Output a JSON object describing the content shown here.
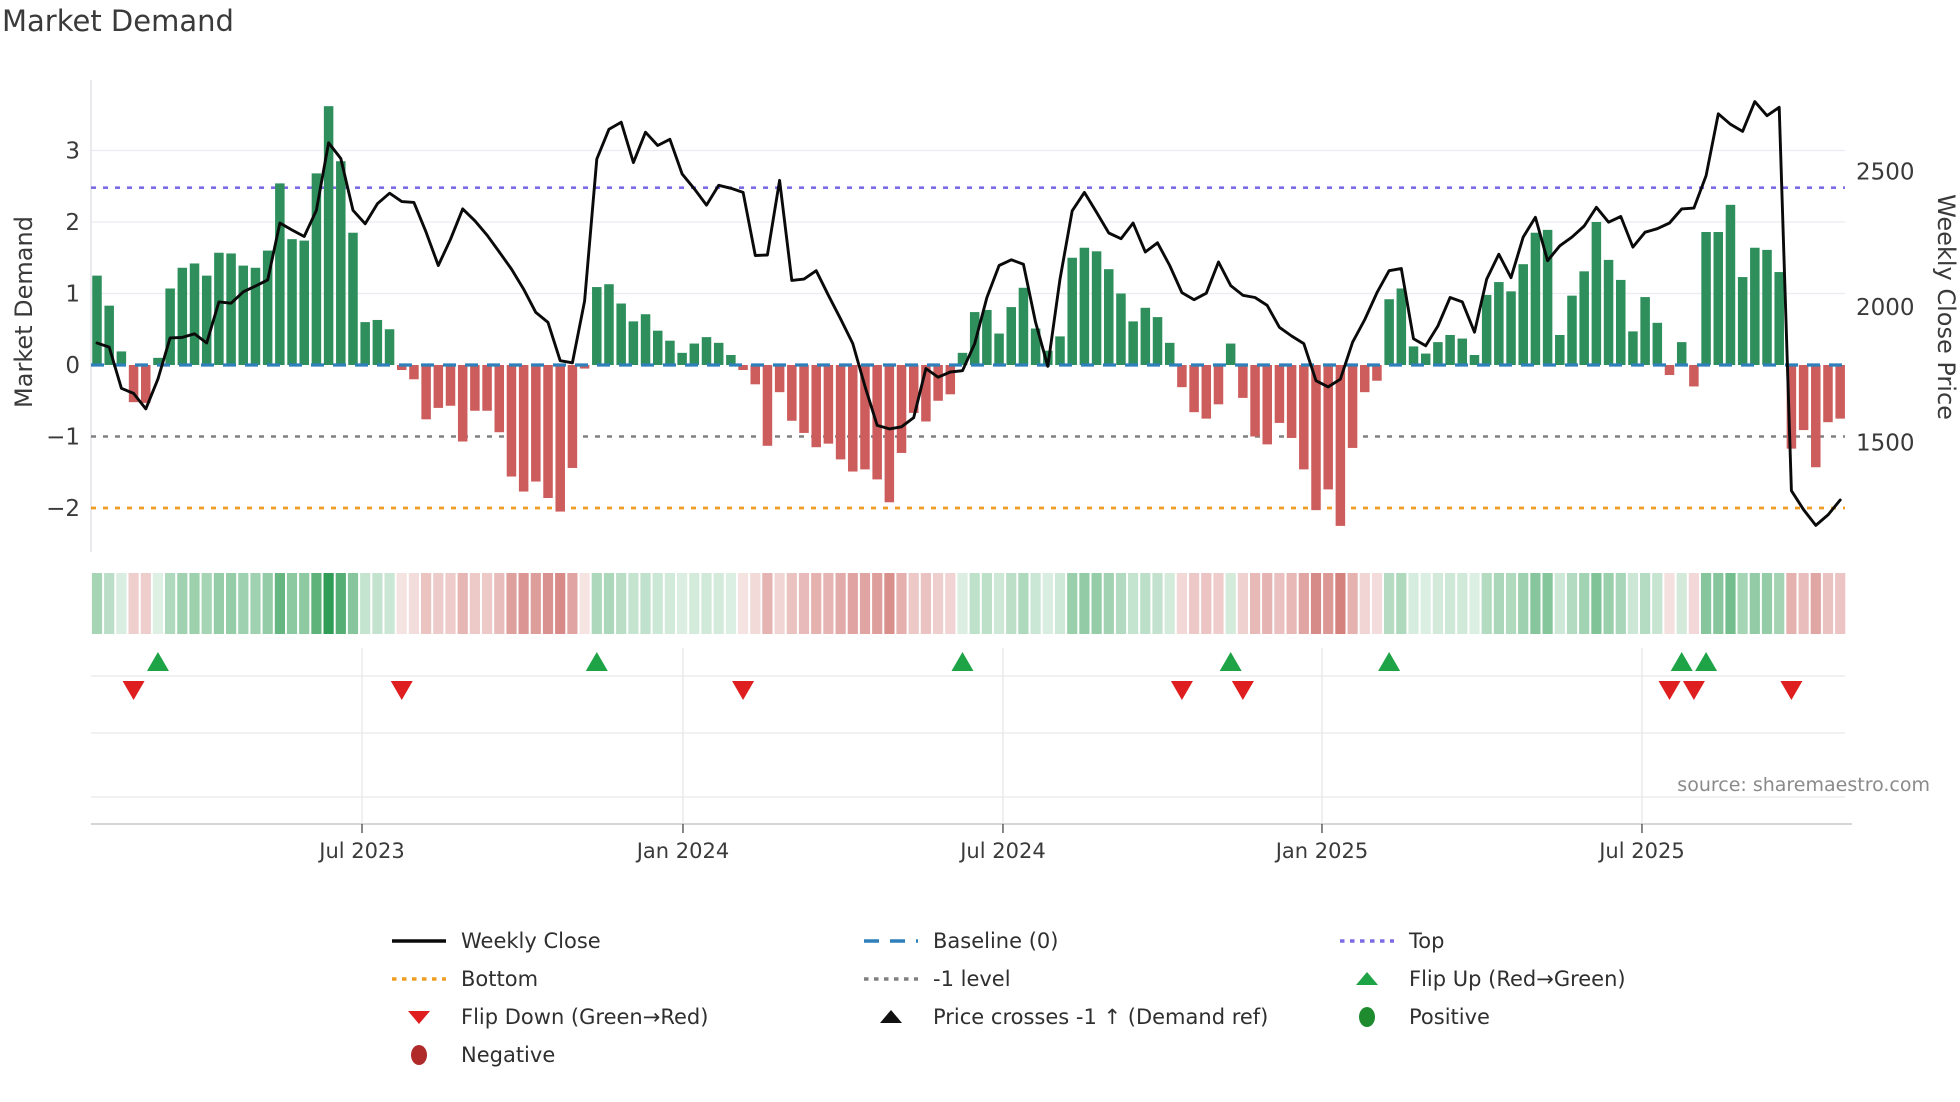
{
  "title": "Market Demand",
  "source": "source: sharemaestro.com",
  "left_axis": {
    "label": "Market Demand",
    "ticks": [
      "3",
      "2",
      "1",
      "0",
      "−1",
      "−2"
    ],
    "tick_values": [
      3,
      2,
      1,
      0,
      -1,
      -2
    ]
  },
  "right_axis": {
    "label": "Weekly Close Price",
    "ticks": [
      "2500",
      "2000",
      "1500"
    ],
    "tick_values": [
      2500,
      2000,
      1500
    ]
  },
  "colors": {
    "bar_positive": "#2e8f5c",
    "bar_negative": "#cd5c5c",
    "line": "#0a0a0a",
    "baseline": "#2f7fba",
    "top_line": "#7b6ce6",
    "bottom_line": "#ef9d22",
    "minus_one_line": "#808080",
    "flip_up": "#1fa347",
    "flip_down": "#df1f1f",
    "positive_dot": "#1e8b2e",
    "negative_dot": "#b02a2a",
    "grid": "#ececf2",
    "panel_grid": "#e3e3e3",
    "axis_line": "#c9c9c9",
    "text": "#3a3a3a"
  },
  "chart_data": {
    "type": "bar+line",
    "title": "Market Demand",
    "ylabel_left": "Market Demand",
    "ylabel_right": "Weekly Close Price",
    "left_ylim": [
      -2.7,
      3.95
    ],
    "right_ylim": [
      1090,
      2890
    ],
    "grid": "horizontal-main, date-vertical-lower-panels",
    "legend_position": "bottom, 3 columns",
    "x_ticks": [
      {
        "label": "Jul 2023",
        "index": 21.74
      },
      {
        "label": "Jan 2024",
        "index": 48.07
      },
      {
        "label": "Jul 2024",
        "index": 74.32
      },
      {
        "label": "Jan 2025",
        "index": 100.49
      },
      {
        "label": "Jul 2025",
        "index": 126.74
      }
    ],
    "reference_lines": {
      "baseline": 0,
      "top": 2.48,
      "minus_one": -1,
      "bottom": -2
    },
    "series": [
      {
        "name": "Market Demand",
        "type": "bar",
        "axis": "left",
        "values": [
          1.25,
          0.83,
          0.19,
          -0.52,
          -0.53,
          0.1,
          1.07,
          1.36,
          1.42,
          1.25,
          1.57,
          1.56,
          1.39,
          1.36,
          1.6,
          2.54,
          1.76,
          1.74,
          2.68,
          3.62,
          2.85,
          1.85,
          0.6,
          0.63,
          0.5,
          -0.07,
          -0.2,
          -0.76,
          -0.6,
          -0.57,
          -1.07,
          -0.64,
          -0.64,
          -0.94,
          -1.56,
          -1.77,
          -1.63,
          -1.86,
          -2.05,
          -1.44,
          -0.05,
          1.09,
          1.13,
          0.86,
          0.61,
          0.71,
          0.48,
          0.34,
          0.17,
          0.3,
          0.39,
          0.31,
          0.14,
          -0.07,
          -0.27,
          -1.13,
          -0.38,
          -0.78,
          -0.95,
          -1.15,
          -1.1,
          -1.32,
          -1.49,
          -1.46,
          -1.6,
          -1.92,
          -1.23,
          -0.67,
          -0.79,
          -0.5,
          -0.41,
          0.17,
          0.74,
          0.77,
          0.44,
          0.81,
          1.08,
          0.51,
          0.2,
          0.4,
          1.5,
          1.64,
          1.59,
          1.34,
          1.0,
          0.61,
          0.8,
          0.67,
          0.31,
          -0.31,
          -0.66,
          -0.75,
          -0.55,
          0.3,
          -0.46,
          -1.0,
          -1.11,
          -0.81,
          -1.02,
          -1.46,
          -2.03,
          -1.74,
          -2.25,
          -1.16,
          -0.38,
          -0.22,
          0.92,
          1.07,
          0.26,
          0.16,
          0.32,
          0.42,
          0.37,
          0.14,
          0.98,
          1.16,
          1.03,
          1.41,
          1.85,
          1.89,
          0.42,
          0.97,
          1.31,
          2.0,
          1.47,
          1.19,
          0.47,
          0.95,
          0.59,
          -0.14,
          0.32,
          -0.3,
          1.86,
          1.86,
          2.24,
          1.23,
          1.64,
          1.61,
          1.3,
          -1.17,
          -0.91,
          -1.43,
          -0.8,
          -0.75
        ]
      },
      {
        "name": "Weekly Close",
        "type": "line",
        "axis": "right",
        "values": [
          1867,
          1852,
          1700,
          1681,
          1624,
          1734,
          1886,
          1888,
          1901,
          1867,
          2019,
          2014,
          2056,
          2077,
          2100,
          2310,
          2284,
          2260,
          2357,
          2606,
          2548,
          2357,
          2307,
          2381,
          2420,
          2389,
          2386,
          2276,
          2153,
          2250,
          2362,
          2318,
          2265,
          2203,
          2140,
          2066,
          1980,
          1943,
          1802,
          1794,
          2022,
          2546,
          2656,
          2682,
          2533,
          2645,
          2596,
          2619,
          2491,
          2436,
          2376,
          2449,
          2438,
          2423,
          2190,
          2192,
          2467,
          2098,
          2103,
          2134,
          2043,
          1956,
          1865,
          1707,
          1563,
          1550,
          1558,
          1592,
          1773,
          1741,
          1760,
          1765,
          1865,
          2035,
          2153,
          2174,
          2158,
          1943,
          1781,
          2103,
          2355,
          2423,
          2349,
          2273,
          2252,
          2310,
          2203,
          2237,
          2153,
          2053,
          2027,
          2051,
          2166,
          2079,
          2043,
          2035,
          2006,
          1925,
          1893,
          1865,
          1728,
          1705,
          1734,
          1870,
          1954,
          2053,
          2134,
          2142,
          1883,
          1857,
          1930,
          2035,
          2019,
          1907,
          2103,
          2195,
          2108,
          2258,
          2331,
          2171,
          2226,
          2258,
          2299,
          2368,
          2313,
          2334,
          2221,
          2276,
          2289,
          2310,
          2362,
          2365,
          2485,
          2713,
          2674,
          2648,
          2758,
          2706,
          2737,
          1322,
          1252,
          1194,
          1233,
          1288
        ]
      }
    ],
    "heatmap_strip": "same weekly values as demand bars, green/red intensity by magnitude",
    "flip_up_indices": [
      5,
      41,
      71,
      93,
      106,
      130,
      132
    ],
    "flip_down_indices": [
      3,
      25,
      53,
      89,
      94,
      129,
      131,
      139
    ]
  },
  "legend": {
    "columns": [
      [
        {
          "swatch": "line-solid",
          "color": "#0a0a0a",
          "label": "Weekly Close"
        },
        {
          "swatch": "line-dotted",
          "color": "#ef9d22",
          "label": "Bottom"
        },
        {
          "swatch": "triangle-down",
          "color": "#df1f1f",
          "label": "Flip Down (Green→Red)"
        },
        {
          "swatch": "circle",
          "color": "#b02a2a",
          "label": "Negative"
        }
      ],
      [
        {
          "swatch": "line-dashed",
          "color": "#2f7fba",
          "label": "Baseline (0)"
        },
        {
          "swatch": "line-dotted",
          "color": "#808080",
          "label": "-1 level"
        },
        {
          "swatch": "triangle-up",
          "color": "#111111",
          "label": "Price crosses -1 ↑ (Demand ref)"
        }
      ],
      [
        {
          "swatch": "line-dotted",
          "color": "#7b6ce6",
          "label": "Top"
        },
        {
          "swatch": "triangle-up",
          "color": "#1fa347",
          "label": "Flip Up (Red→Green)"
        },
        {
          "swatch": "circle",
          "color": "#1e8b2e",
          "label": "Positive"
        }
      ]
    ]
  }
}
